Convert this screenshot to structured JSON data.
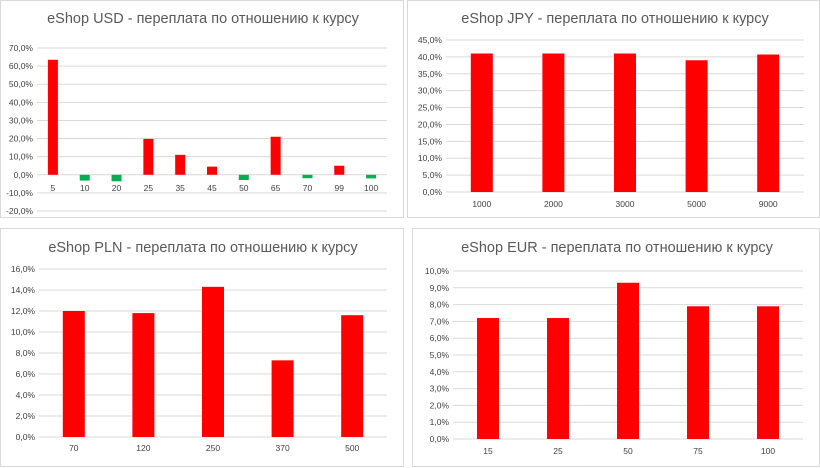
{
  "charts": {
    "usd": {
      "chart_data": {
        "type": "bar",
        "title": "eShop USD - переплата по отношению к курсу",
        "xlabel": "",
        "ylabel": "",
        "categories": [
          "5",
          "10",
          "20",
          "25",
          "35",
          "45",
          "50",
          "65",
          "70",
          "99",
          "100"
        ],
        "values": [
          63.5,
          -3.2,
          -3.6,
          19.8,
          11.0,
          4.5,
          -2.9,
          21.0,
          -1.9,
          5.0,
          -2.0
        ],
        "ylim": [
          -20,
          70
        ],
        "yticks": [
          -20,
          -10,
          0,
          10,
          20,
          30,
          40,
          50,
          60,
          70
        ],
        "ytick_labels": [
          "-20,0%",
          "-10,0%",
          "0,0%",
          "10,0%",
          "20,0%",
          "30,0%",
          "40,0%",
          "50,0%",
          "60,0%",
          "70,0%"
        ],
        "grid": true,
        "positive_color": "#ff0000",
        "negative_color": "#00b050"
      }
    },
    "jpy": {
      "chart_data": {
        "type": "bar",
        "title": "eShop JPY - переплата по отношению к курсу",
        "xlabel": "",
        "ylabel": "",
        "categories": [
          "1000",
          "2000",
          "3000",
          "5000",
          "9000"
        ],
        "values": [
          41.0,
          41.0,
          41.0,
          39.0,
          40.7
        ],
        "ylim": [
          0,
          45
        ],
        "yticks": [
          0,
          5,
          10,
          15,
          20,
          25,
          30,
          35,
          40,
          45
        ],
        "ytick_labels": [
          "0,0%",
          "5,0%",
          "10,0%",
          "15,0%",
          "20,0%",
          "25,0%",
          "30,0%",
          "35,0%",
          "40,0%",
          "45,0%"
        ],
        "grid": true,
        "positive_color": "#ff0000",
        "negative_color": "#00b050"
      }
    },
    "pln": {
      "chart_data": {
        "type": "bar",
        "title": "eShop PLN - переплата по отношению к курсу",
        "xlabel": "",
        "ylabel": "",
        "categories": [
          "70",
          "120",
          "250",
          "370",
          "500"
        ],
        "values": [
          12.0,
          11.8,
          14.3,
          7.3,
          11.6
        ],
        "ylim": [
          0,
          16
        ],
        "yticks": [
          0,
          2,
          4,
          6,
          8,
          10,
          12,
          14,
          16
        ],
        "ytick_labels": [
          "0,0%",
          "2,0%",
          "4,0%",
          "6,0%",
          "8,0%",
          "10,0%",
          "12,0%",
          "14,0%",
          "16,0%"
        ],
        "grid": true,
        "positive_color": "#ff0000",
        "negative_color": "#00b050"
      }
    },
    "eur": {
      "chart_data": {
        "type": "bar",
        "title": "eShop EUR - переплата по отношению к курсу",
        "xlabel": "",
        "ylabel": "",
        "categories": [
          "15",
          "25",
          "50",
          "75",
          "100"
        ],
        "values": [
          7.2,
          7.2,
          9.3,
          7.9,
          7.9
        ],
        "ylim": [
          0,
          10
        ],
        "yticks": [
          0,
          1,
          2,
          3,
          4,
          5,
          6,
          7,
          8,
          9,
          10
        ],
        "ytick_labels": [
          "0,0%",
          "1,0%",
          "2,0%",
          "3,0%",
          "4,0%",
          "5,0%",
          "6,0%",
          "7,0%",
          "8,0%",
          "9,0%",
          "10,0%"
        ],
        "grid": true,
        "positive_color": "#ff0000",
        "negative_color": "#00b050"
      }
    }
  }
}
